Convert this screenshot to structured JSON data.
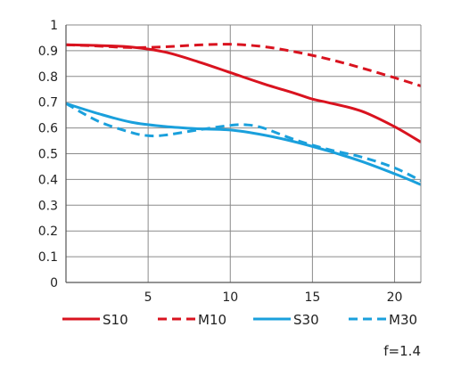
{
  "chart_data": {
    "type": "line",
    "title": "",
    "xlabel": "",
    "ylabel": "",
    "xlim": [
      0,
      21.6
    ],
    "ylim": [
      0,
      1
    ],
    "grid": true,
    "x_ticks": [
      5,
      10,
      15,
      20
    ],
    "y_ticks": [
      0,
      0.1,
      0.2,
      0.3,
      0.4,
      0.5,
      0.6,
      0.7,
      0.8,
      0.9,
      1
    ],
    "legend_position": "bottom",
    "annotation": "f=1.4",
    "series": [
      {
        "name": "S10",
        "color": "#d9131f",
        "dash": "solid",
        "points": [
          [
            0,
            0.923
          ],
          [
            2,
            0.92
          ],
          [
            4,
            0.914
          ],
          [
            6,
            0.895
          ],
          [
            8,
            0.858
          ],
          [
            10,
            0.815
          ],
          [
            12,
            0.772
          ],
          [
            14,
            0.733
          ],
          [
            15,
            0.712
          ],
          [
            16,
            0.698
          ],
          [
            18,
            0.665
          ],
          [
            20,
            0.605
          ],
          [
            21.6,
            0.545
          ]
        ]
      },
      {
        "name": "M10",
        "color": "#d9131f",
        "dash": "dashed",
        "points": [
          [
            0,
            0.923
          ],
          [
            2,
            0.918
          ],
          [
            4,
            0.912
          ],
          [
            6,
            0.915
          ],
          [
            8,
            0.922
          ],
          [
            10,
            0.925
          ],
          [
            12,
            0.916
          ],
          [
            14,
            0.895
          ],
          [
            16,
            0.867
          ],
          [
            18,
            0.833
          ],
          [
            20,
            0.795
          ],
          [
            21.6,
            0.763
          ]
        ]
      },
      {
        "name": "S30",
        "color": "#1aa0dc",
        "dash": "solid",
        "points": [
          [
            0,
            0.695
          ],
          [
            2,
            0.655
          ],
          [
            4,
            0.622
          ],
          [
            6,
            0.606
          ],
          [
            8,
            0.597
          ],
          [
            10,
            0.592
          ],
          [
            12,
            0.573
          ],
          [
            14,
            0.545
          ],
          [
            16,
            0.51
          ],
          [
            18,
            0.47
          ],
          [
            20,
            0.422
          ],
          [
            21.6,
            0.38
          ]
        ]
      },
      {
        "name": "M30",
        "color": "#1aa0dc",
        "dash": "dashed",
        "points": [
          [
            0,
            0.695
          ],
          [
            2,
            0.625
          ],
          [
            4,
            0.582
          ],
          [
            5,
            0.57
          ],
          [
            6,
            0.572
          ],
          [
            8,
            0.592
          ],
          [
            10,
            0.61
          ],
          [
            11,
            0.612
          ],
          [
            12,
            0.6
          ],
          [
            14,
            0.553
          ],
          [
            16,
            0.516
          ],
          [
            18,
            0.487
          ],
          [
            20,
            0.445
          ],
          [
            21.6,
            0.395
          ]
        ]
      }
    ]
  }
}
